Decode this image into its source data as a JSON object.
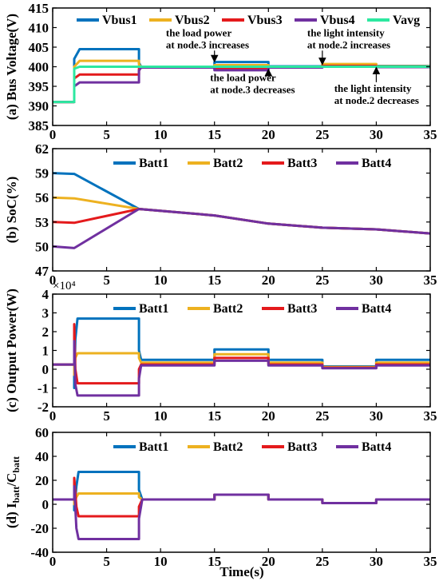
{
  "figure": {
    "xlabel": "Time(s)"
  },
  "colors": {
    "s1": "#0072BD",
    "s2": "#EDB120",
    "s3": "#E41A1C",
    "s4": "#7030A0",
    "s5": "#2CE8A0"
  },
  "chart_data": [
    {
      "type": "line",
      "id": "panel-a",
      "ylabel": "(a) Bus Voltage(V)",
      "xlim": [
        0,
        35
      ],
      "ylim": [
        385,
        415
      ],
      "xticks": [
        0,
        5,
        10,
        15,
        20,
        25,
        30,
        35
      ],
      "yticks": [
        385,
        390,
        395,
        400,
        405,
        410,
        415
      ],
      "legend": "top",
      "legend_marker": "line",
      "series": [
        {
          "name": "Vbus1",
          "color": "#0072BD",
          "x": [
            0,
            2,
            2,
            2.5,
            8,
            8,
            8.2,
            15,
            15,
            20,
            20,
            25,
            25,
            30,
            30,
            35
          ],
          "y": [
            391,
            391,
            402,
            404.5,
            404.5,
            401,
            400,
            400,
            401.2,
            401.2,
            400.1,
            400.1,
            400.4,
            400.4,
            400.2,
            400.2
          ]
        },
        {
          "name": "Vbus2",
          "color": "#EDB120",
          "x": [
            0,
            2,
            2,
            2.5,
            8,
            8,
            8.2,
            15,
            15,
            20,
            20,
            25,
            25,
            30,
            30,
            35
          ],
          "y": [
            391,
            391,
            400,
            401.5,
            401.5,
            400.5,
            400,
            400,
            400.4,
            400.4,
            400,
            400,
            400.7,
            400.7,
            400.1,
            400.1
          ]
        },
        {
          "name": "Vbus3",
          "color": "#E41A1C",
          "x": [
            0,
            2,
            2,
            2.5,
            8,
            8,
            8.2,
            15,
            15,
            20,
            20,
            25,
            25,
            30,
            30,
            35
          ],
          "y": [
            391,
            391,
            397,
            398,
            398,
            399.5,
            400,
            400,
            399.4,
            399.4,
            400,
            400,
            400.2,
            400.2,
            400,
            400
          ]
        },
        {
          "name": "Vbus4",
          "color": "#7030A0",
          "x": [
            0,
            2,
            2,
            2.5,
            8,
            8,
            8.2,
            15,
            15,
            20,
            20,
            25,
            25,
            30,
            30,
            35
          ],
          "y": [
            391,
            391,
            395,
            396,
            396,
            399,
            399.8,
            399.8,
            399.1,
            399.1,
            399.8,
            399.8,
            400,
            400,
            399.9,
            399.9
          ]
        },
        {
          "name": "Vavg",
          "color": "#2CE8A0",
          "x": [
            0,
            2,
            2,
            2.5,
            8,
            8,
            8.2,
            15,
            15,
            20,
            20,
            25,
            25,
            30,
            30,
            35
          ],
          "y": [
            391,
            391,
            399.5,
            400,
            400,
            400,
            400,
            400,
            400,
            400,
            400,
            400,
            400,
            400,
            400,
            400
          ]
        }
      ],
      "annotations": [
        {
          "lines": [
            "the load power",
            "at node.3 increases"
          ],
          "x": 10.5,
          "y": 407.8,
          "arrow_to": [
            15,
            401.3
          ]
        },
        {
          "lines": [
            "the light intensity",
            "at node.2 increases"
          ],
          "x": 23.6,
          "y": 407.8,
          "arrow_to": [
            25,
            400.6
          ]
        },
        {
          "lines": [
            "the load power",
            "at node.3 decreases"
          ],
          "x": 14.6,
          "y": 396.3,
          "arrow_to": [
            20,
            399.3
          ]
        },
        {
          "lines": [
            "the light intensity",
            "at node.2 decreases"
          ],
          "x": 26.1,
          "y": 393.6,
          "arrow_to": [
            30,
            399.8
          ]
        }
      ]
    },
    {
      "type": "line",
      "id": "panel-b",
      "ylabel": "(b) SoC(%)",
      "xlim": [
        0,
        35
      ],
      "ylim": [
        47,
        62
      ],
      "xticks": [
        0,
        5,
        10,
        15,
        20,
        25,
        30,
        35
      ],
      "yticks": [
        47,
        50,
        53,
        56,
        59,
        62
      ],
      "legend": "top-right",
      "legend_marker": "line",
      "series": [
        {
          "name": "Batt1",
          "color": "#0072BD",
          "x": [
            0,
            2,
            8,
            15,
            20,
            25,
            30,
            35
          ],
          "y": [
            59,
            58.9,
            54.6,
            53.8,
            52.8,
            52.3,
            52.1,
            51.6
          ]
        },
        {
          "name": "Batt2",
          "color": "#EDB120",
          "x": [
            0,
            2,
            8,
            15,
            20,
            25,
            30,
            35
          ],
          "y": [
            56,
            55.9,
            54.6,
            53.8,
            52.8,
            52.3,
            52.1,
            51.6
          ]
        },
        {
          "name": "Batt3",
          "color": "#E41A1C",
          "x": [
            0,
            2,
            8,
            15,
            20,
            25,
            30,
            35
          ],
          "y": [
            53,
            52.9,
            54.6,
            53.8,
            52.8,
            52.3,
            52.1,
            51.6
          ]
        },
        {
          "name": "Batt4",
          "color": "#7030A0",
          "x": [
            0,
            2,
            8,
            15,
            20,
            25,
            30,
            35
          ],
          "y": [
            50,
            49.8,
            54.6,
            53.8,
            52.8,
            52.3,
            52.1,
            51.6
          ]
        }
      ]
    },
    {
      "type": "line",
      "id": "panel-c",
      "ylabel": "(c) Output Power(W)",
      "exponent_label": "×10⁴",
      "xlim": [
        0,
        35
      ],
      "ylim": [
        -2,
        4
      ],
      "xticks": [
        0,
        5,
        10,
        15,
        20,
        25,
        30,
        35
      ],
      "yticks": [
        -2,
        -1,
        0,
        1,
        2,
        3,
        4
      ],
      "legend": "top-right",
      "legend_marker": "line",
      "series": [
        {
          "name": "Batt1",
          "color": "#0072BD",
          "x": [
            0,
            2,
            2,
            2.1,
            2.3,
            8,
            8,
            8.2,
            15,
            15,
            20,
            20,
            25,
            25,
            30,
            30,
            35
          ],
          "y": [
            0.25,
            0.25,
            -1,
            1.6,
            2.7,
            2.7,
            1,
            0.5,
            0.5,
            1.05,
            1.05,
            0.5,
            0.5,
            0.15,
            0.15,
            0.5,
            0.5
          ]
        },
        {
          "name": "Batt2",
          "color": "#EDB120",
          "x": [
            0,
            2,
            2,
            2.1,
            2.3,
            8,
            8,
            8.2,
            15,
            15,
            20,
            20,
            25,
            25,
            30,
            30,
            35
          ],
          "y": [
            0.25,
            0.25,
            -0.3,
            0.6,
            0.85,
            0.85,
            0.6,
            0.35,
            0.35,
            0.8,
            0.8,
            0.35,
            0.35,
            0.12,
            0.12,
            0.35,
            0.35
          ]
        },
        {
          "name": "Batt3",
          "color": "#E41A1C",
          "x": [
            0,
            2,
            2,
            2.1,
            2.3,
            8,
            8,
            8.2,
            15,
            15,
            20,
            20,
            25,
            25,
            30,
            30,
            35
          ],
          "y": [
            0.25,
            0.25,
            2.4,
            0,
            -0.75,
            -0.75,
            0,
            0.25,
            0.25,
            0.6,
            0.6,
            0.25,
            0.25,
            0.08,
            0.08,
            0.25,
            0.25
          ]
        },
        {
          "name": "Batt4",
          "color": "#7030A0",
          "x": [
            0,
            2,
            2,
            2.1,
            2.3,
            8,
            8,
            8.2,
            15,
            15,
            20,
            20,
            25,
            25,
            30,
            30,
            35
          ],
          "y": [
            0.25,
            0.25,
            1.5,
            -0.8,
            -1.4,
            -1.4,
            -0.5,
            0.2,
            0.2,
            0.45,
            0.45,
            0.2,
            0.2,
            0.05,
            0.05,
            0.2,
            0.2
          ]
        }
      ]
    },
    {
      "type": "line",
      "id": "panel-d",
      "ylabel": "(d) Ibatt/Cbatt",
      "ylabel_main": "(d) I",
      "ylabel_sub1": "batt",
      "ylabel_mid": "/C",
      "ylabel_sub2": "batt",
      "xlim": [
        0,
        35
      ],
      "ylim": [
        -40,
        60
      ],
      "xticks": [
        0,
        5,
        10,
        15,
        20,
        25,
        30,
        35
      ],
      "yticks": [
        -40,
        -20,
        0,
        20,
        40,
        60
      ],
      "legend": "top-right",
      "legend_marker": "line",
      "xlabel_shown": true,
      "series": [
        {
          "name": "Batt1",
          "color": "#0072BD",
          "x": [
            0,
            2,
            2,
            2.2,
            2.4,
            8,
            8,
            8.3,
            15,
            15,
            20,
            20,
            25,
            25,
            30,
            30,
            35
          ],
          "y": [
            4,
            4,
            -5,
            15,
            27,
            27,
            12,
            4,
            4,
            8,
            8,
            4,
            4,
            1,
            1,
            4,
            4
          ]
        },
        {
          "name": "Batt2",
          "color": "#EDB120",
          "x": [
            0,
            2,
            2,
            2.2,
            2.4,
            8,
            8,
            8.3,
            15,
            15,
            20,
            20,
            25,
            25,
            30,
            30,
            35
          ],
          "y": [
            4,
            4,
            0,
            6,
            9,
            9,
            6,
            4,
            4,
            8,
            8,
            4,
            4,
            1,
            1,
            4,
            4
          ]
        },
        {
          "name": "Batt3",
          "color": "#E41A1C",
          "x": [
            0,
            2,
            2,
            2.2,
            2.4,
            8,
            8,
            8.3,
            15,
            15,
            20,
            20,
            25,
            25,
            30,
            30,
            35
          ],
          "y": [
            4,
            4,
            22,
            -2,
            -10,
            -10,
            -2,
            4,
            4,
            8,
            8,
            4,
            4,
            1,
            1,
            4,
            4
          ]
        },
        {
          "name": "Batt4",
          "color": "#7030A0",
          "x": [
            0,
            2,
            2,
            2.2,
            2.4,
            8,
            8,
            8.3,
            15,
            15,
            20,
            20,
            25,
            25,
            30,
            30,
            35
          ],
          "y": [
            4,
            4,
            15,
            -20,
            -29,
            -29,
            -12,
            4,
            4,
            8,
            8,
            4,
            4,
            1,
            1,
            4,
            4
          ]
        }
      ]
    }
  ]
}
